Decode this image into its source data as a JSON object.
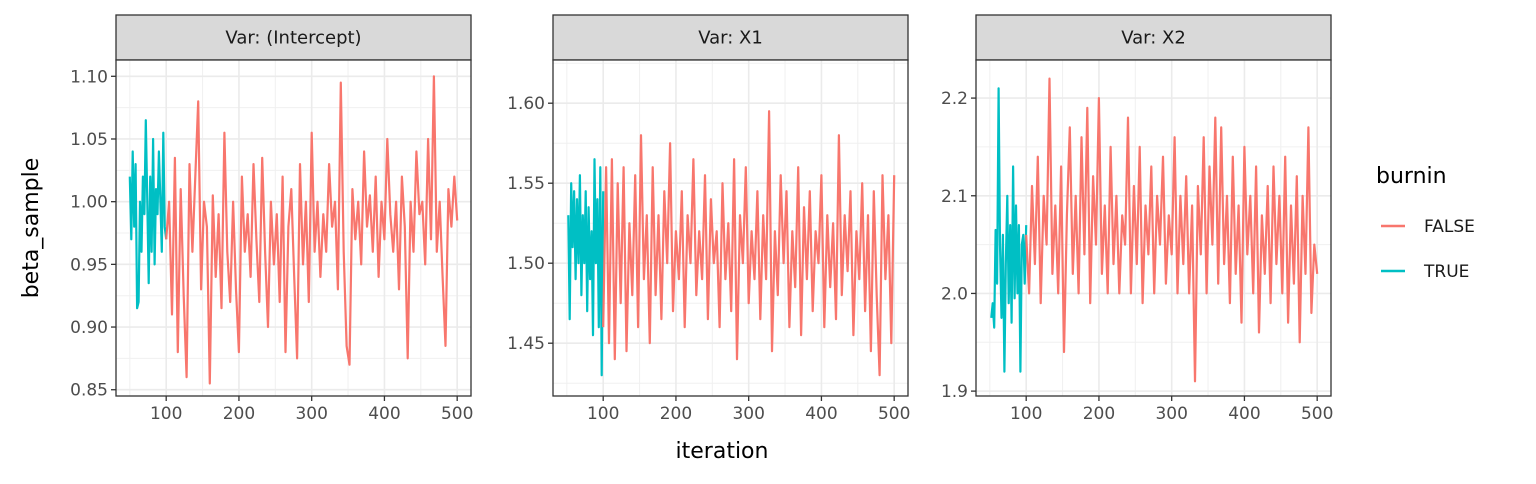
{
  "chart_data": {
    "type": "line",
    "xlabel": "iteration",
    "ylabel": "beta_sample",
    "legend": {
      "title": "burnin",
      "position": "right",
      "entries": [
        {
          "label": "FALSE",
          "color": "#F8766D"
        },
        {
          "label": "TRUE",
          "color": "#00BFC4"
        }
      ]
    },
    "grid": true,
    "panels": [
      {
        "strip": "Var: (Intercept)",
        "xlim": [
          31,
          519
        ],
        "ylim": [
          0.845,
          1.113
        ],
        "xticks": [
          100,
          200,
          300,
          400,
          500
        ],
        "yticks": [
          0.85,
          0.9,
          0.95,
          1.0,
          1.05,
          1.1
        ],
        "ytick_labels": [
          "0.85",
          "0.90",
          "0.95",
          "1.00",
          "1.05",
          "1.10"
        ],
        "series": [
          {
            "name": "TRUE",
            "x": [
              50,
              52,
              54,
              56,
              58,
              60,
              62,
              64,
              66,
              68,
              70,
              72,
              74,
              76,
              78,
              80,
              82,
              84,
              86,
              88,
              90,
              92,
              94,
              96,
              98,
              100
            ],
            "y": [
              1.02,
              0.97,
              1.04,
              0.98,
              1.03,
              0.915,
              0.92,
              1.0,
              0.96,
              1.02,
              0.99,
              1.065,
              1.0,
              0.935,
              1.02,
              0.96,
              1.05,
              0.95,
              1.01,
              0.99,
              1.04,
              1.0,
              0.96,
              1.055,
              0.98,
              0.97
            ]
          },
          {
            "name": "FALSE",
            "x": [
              100,
              104,
              108,
              112,
              116,
              120,
              124,
              128,
              132,
              136,
              140,
              144,
              148,
              152,
              156,
              160,
              164,
              168,
              172,
              176,
              180,
              184,
              188,
              192,
              196,
              200,
              204,
              208,
              212,
              216,
              220,
              224,
              228,
              232,
              236,
              240,
              244,
              248,
              252,
              256,
              260,
              264,
              268,
              272,
              276,
              280,
              284,
              288,
              292,
              296,
              300,
              304,
              308,
              312,
              316,
              320,
              324,
              328,
              332,
              336,
              340,
              344,
              348,
              352,
              356,
              360,
              364,
              368,
              372,
              376,
              380,
              384,
              388,
              392,
              396,
              400,
              404,
              408,
              412,
              416,
              420,
              424,
              428,
              432,
              436,
              440,
              444,
              448,
              452,
              456,
              460,
              464,
              468,
              472,
              476,
              480,
              484,
              488,
              492,
              496,
              500
            ],
            "y": [
              0.97,
              1.0,
              0.91,
              1.035,
              0.88,
              1.01,
              0.925,
              0.86,
              1.03,
              0.96,
              1.02,
              1.08,
              0.93,
              1.0,
              0.98,
              0.855,
              1.005,
              0.94,
              0.99,
              0.915,
              1.055,
              0.96,
              0.92,
              1.0,
              0.93,
              0.88,
              1.02,
              0.96,
              0.99,
              0.94,
              1.03,
              0.97,
              0.92,
              1.035,
              0.96,
              0.9,
              1.0,
              0.95,
              0.99,
              0.92,
              1.02,
              0.88,
              0.98,
              1.01,
              0.94,
              0.875,
              1.03,
              0.95,
              1.0,
              0.92,
              1.055,
              0.96,
              1.0,
              0.94,
              0.99,
              0.96,
              1.03,
              0.98,
              1.0,
              0.93,
              1.095,
              0.96,
              0.885,
              0.87,
              1.01,
              0.97,
              1.0,
              0.95,
              1.04,
              0.98,
              1.005,
              0.96,
              1.02,
              0.94,
              1.0,
              0.97,
              1.05,
              0.99,
              0.96,
              1.0,
              0.93,
              1.02,
              0.98,
              0.875,
              1.0,
              0.96,
              1.04,
              0.99,
              1.0,
              0.95,
              1.05,
              0.97,
              1.1,
              0.96,
              1.0,
              0.94,
              0.885,
              1.01,
              0.98,
              1.02,
              0.985
            ]
          }
        ]
      },
      {
        "strip": "Var: X1",
        "xlim": [
          31,
          519
        ],
        "ylim": [
          1.417,
          1.627
        ],
        "xticks": [
          100,
          200,
          300,
          400,
          500
        ],
        "yticks": [
          1.45,
          1.5,
          1.55,
          1.6
        ],
        "ytick_labels": [
          "1.45",
          "1.50",
          "1.55",
          "1.60"
        ],
        "series": [
          {
            "name": "TRUE",
            "x": [
              52,
              54,
              56,
              58,
              60,
              62,
              64,
              66,
              68,
              70,
              72,
              74,
              76,
              78,
              80,
              82,
              84,
              86,
              88,
              90,
              92,
              94,
              96,
              98,
              100
            ],
            "y": [
              1.53,
              1.465,
              1.55,
              1.51,
              1.545,
              1.49,
              1.54,
              1.5,
              1.555,
              1.48,
              1.53,
              1.5,
              1.545,
              1.47,
              1.535,
              1.49,
              1.52,
              1.455,
              1.565,
              1.5,
              1.54,
              1.46,
              1.56,
              1.43,
              1.545
            ]
          },
          {
            "name": "FALSE",
            "x": [
              100,
              104,
              108,
              112,
              116,
              120,
              124,
              128,
              132,
              136,
              140,
              144,
              148,
              152,
              156,
              160,
              164,
              168,
              172,
              176,
              180,
              184,
              188,
              192,
              196,
              200,
              204,
              208,
              212,
              216,
              220,
              224,
              228,
              232,
              236,
              240,
              244,
              248,
              252,
              256,
              260,
              264,
              268,
              272,
              276,
              280,
              284,
              288,
              292,
              296,
              300,
              304,
              308,
              312,
              316,
              320,
              324,
              328,
              332,
              336,
              340,
              344,
              348,
              352,
              356,
              360,
              364,
              368,
              372,
              376,
              380,
              384,
              388,
              392,
              396,
              400,
              404,
              408,
              412,
              416,
              420,
              424,
              428,
              432,
              436,
              440,
              444,
              448,
              452,
              456,
              460,
              464,
              468,
              472,
              476,
              480,
              484,
              488,
              492,
              496,
              500
            ],
            "y": [
              1.46,
              1.56,
              1.45,
              1.565,
              1.44,
              1.55,
              1.475,
              1.56,
              1.445,
              1.525,
              1.48,
              1.555,
              1.46,
              1.58,
              1.49,
              1.53,
              1.45,
              1.56,
              1.48,
              1.53,
              1.465,
              1.545,
              1.5,
              1.575,
              1.47,
              1.52,
              1.49,
              1.545,
              1.46,
              1.53,
              1.5,
              1.565,
              1.48,
              1.52,
              1.49,
              1.555,
              1.465,
              1.54,
              1.5,
              1.52,
              1.46,
              1.55,
              1.49,
              1.525,
              1.47,
              1.565,
              1.44,
              1.53,
              1.5,
              1.56,
              1.475,
              1.52,
              1.49,
              1.545,
              1.465,
              1.53,
              1.49,
              1.595,
              1.445,
              1.52,
              1.48,
              1.555,
              1.5,
              1.545,
              1.46,
              1.52,
              1.485,
              1.56,
              1.455,
              1.535,
              1.49,
              1.545,
              1.47,
              1.52,
              1.5,
              1.555,
              1.46,
              1.53,
              1.485,
              1.525,
              1.465,
              1.58,
              1.48,
              1.53,
              1.495,
              1.545,
              1.455,
              1.52,
              1.49,
              1.55,
              1.47,
              1.53,
              1.445,
              1.545,
              1.48,
              1.43,
              1.555,
              1.49,
              1.53,
              1.45,
              1.555
            ]
          }
        ]
      },
      {
        "strip": "Var: X2",
        "xlim": [
          31,
          519
        ],
        "ylim": [
          1.895,
          2.239
        ],
        "xticks": [
          100,
          200,
          300,
          400,
          500
        ],
        "yticks": [
          1.9,
          2.0,
          2.1,
          2.2
        ],
        "ytick_labels": [
          "1.9",
          "2.0",
          "2.1",
          "2.2"
        ],
        "series": [
          {
            "name": "TRUE",
            "x": [
              52,
              54,
              56,
              58,
              60,
              62,
              64,
              66,
              68,
              70,
              72,
              74,
              76,
              78,
              80,
              82,
              84,
              86,
              88,
              90,
              92,
              94,
              96,
              98,
              100
            ],
            "y": [
              1.975,
              1.99,
              1.965,
              2.065,
              2.01,
              2.21,
              2.05,
              1.975,
              2.06,
              1.92,
              2.03,
              2.1,
              1.99,
              2.07,
              1.97,
              2.13,
              1.995,
              2.09,
              2.0,
              2.07,
              1.92,
              2.05,
              2.06,
              2.01,
              2.07
            ]
          },
          {
            "name": "FALSE",
            "x": [
              100,
              104,
              108,
              112,
              116,
              120,
              124,
              128,
              132,
              136,
              140,
              144,
              148,
              152,
              156,
              160,
              164,
              168,
              172,
              176,
              180,
              184,
              188,
              192,
              196,
              200,
              204,
              208,
              212,
              216,
              220,
              224,
              228,
              232,
              236,
              240,
              244,
              248,
              252,
              256,
              260,
              264,
              268,
              272,
              276,
              280,
              284,
              288,
              292,
              296,
              300,
              304,
              308,
              312,
              316,
              320,
              324,
              328,
              332,
              336,
              340,
              344,
              348,
              352,
              356,
              360,
              364,
              368,
              372,
              376,
              380,
              384,
              388,
              392,
              396,
              400,
              404,
              408,
              412,
              416,
              420,
              424,
              428,
              432,
              436,
              440,
              444,
              448,
              452,
              456,
              460,
              464,
              468,
              472,
              476,
              480,
              484,
              488,
              492,
              496,
              500
            ],
            "y": [
              2.06,
              2.0,
              2.11,
              2.03,
              2.14,
              1.99,
              2.1,
              2.05,
              2.22,
              2.02,
              2.09,
              2.0,
              2.13,
              1.94,
              2.08,
              2.17,
              2.02,
              2.1,
              2.0,
              2.16,
              2.04,
              2.19,
              1.99,
              2.12,
              2.05,
              2.2,
              2.02,
              2.09,
              2.0,
              2.15,
              2.03,
              2.1,
              2.0,
              2.08,
              2.05,
              2.18,
              2.0,
              2.11,
              2.03,
              2.15,
              1.99,
              2.09,
              2.04,
              2.13,
              2.0,
              2.1,
              2.05,
              2.14,
              2.01,
              2.08,
              2.04,
              2.16,
              2.0,
              2.1,
              2.03,
              2.12,
              2.0,
              2.09,
              1.91,
              2.11,
              2.04,
              2.16,
              2.0,
              2.13,
              2.05,
              2.18,
              2.01,
              2.17,
              2.03,
              2.1,
              1.99,
              2.14,
              2.02,
              2.09,
              1.97,
              2.15,
              2.04,
              2.1,
              2.0,
              2.13,
              1.96,
              2.08,
              2.02,
              2.11,
              1.99,
              2.13,
              2.03,
              2.1,
              2.0,
              2.14,
              1.97,
              2.09,
              2.01,
              2.12,
              1.95,
              2.1,
              2.02,
              2.17,
              1.98,
              2.05,
              2.02
            ]
          }
        ]
      }
    ]
  }
}
